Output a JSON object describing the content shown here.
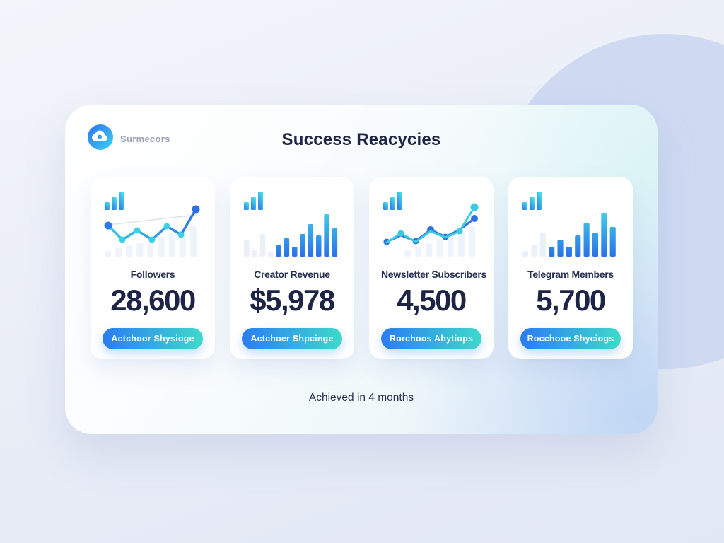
{
  "header": {
    "logo_text": "Surmecors",
    "title": "Success Reacycies"
  },
  "footer": {
    "text": "Achieved in 4 months"
  },
  "colors": {
    "accent_from": "#2b7cf2",
    "accent_to": "#3ed9cb",
    "navy": "#1d2445",
    "bg_circle": "#cfdaf2",
    "faint_bar": "#e9f0fa"
  },
  "cards": [
    {
      "label": "Followers",
      "value": "28,600",
      "button": "Actchoor Shysioge",
      "chart": {
        "type": "line",
        "bg_bars": [
          8,
          12,
          16,
          20,
          24,
          28,
          33,
          38,
          43
        ],
        "trend": {
          "points": [
            [
              8,
              37
            ],
            [
              132,
              23
            ]
          ],
          "color": "#dbe3ee"
        },
        "series": [
          {
            "from": "#3ecde2",
            "to": "#2b6fe6",
            "width": 3.4,
            "points": [
              [
                8,
                38
              ],
              [
                28,
                58
              ],
              [
                49,
                45
              ],
              [
                70,
                58
              ],
              [
                91,
                39
              ],
              [
                111,
                51
              ],
              [
                132,
                15
              ]
            ],
            "dots": [
              {
                "i": 0,
                "c": "#2e7ae8",
                "r": 5.5
              },
              {
                "i": 1,
                "c": "#3bd0e4",
                "r": 4.5
              },
              {
                "i": 2,
                "c": "#3bd0e4",
                "r": 4.5
              },
              {
                "i": 3,
                "c": "#3bd0e4",
                "r": 4.5
              },
              {
                "i": 4,
                "c": "#3bd0e4",
                "r": 4.5
              },
              {
                "i": 5,
                "c": "#3bd0e4",
                "r": 4.5
              },
              {
                "i": 6,
                "c": "#2b6fe6",
                "r": 5.5
              }
            ]
          }
        ]
      }
    },
    {
      "label": "Creator Revenue",
      "value": "$5,978",
      "button": "Actchoer Shpcinge",
      "chart": {
        "type": "bar",
        "faint": [
          24,
          10,
          32,
          6
        ],
        "bars": [
          16,
          26,
          14,
          32,
          46,
          30,
          60,
          40
        ]
      }
    },
    {
      "label": "Newsletter Subscribers",
      "value": "4,500",
      "button": "Rorchoos Ahytiops",
      "chart": {
        "type": "line",
        "bg_bars": [
          0,
          0,
          9,
          14,
          19,
          25,
          31,
          37,
          43
        ],
        "series": [
          {
            "from": "#2e6fe2",
            "to": "#2e6fe2",
            "width": 3,
            "points": [
              [
                8,
                61
              ],
              [
                28,
                52
              ],
              [
                49,
                60
              ],
              [
                70,
                44
              ],
              [
                91,
                54
              ],
              [
                111,
                44
              ],
              [
                132,
                28
              ]
            ],
            "dots": [
              {
                "i": 0,
                "c": "#2e6fe2",
                "r": 4.5
              },
              {
                "i": 2,
                "c": "#2e6fe2",
                "r": 4.5
              },
              {
                "i": 3,
                "c": "#2e6fe2",
                "r": 5
              },
              {
                "i": 4,
                "c": "#2e6fe2",
                "r": 4.5
              },
              {
                "i": 6,
                "c": "#2e6fe2",
                "r": 5
              }
            ]
          },
          {
            "from": "#3bcbe0",
            "to": "#3bcbe0",
            "width": 3,
            "points": [
              [
                8,
                62
              ],
              [
                28,
                49
              ],
              [
                49,
                61
              ],
              [
                70,
                46
              ],
              [
                91,
                55
              ],
              [
                111,
                46
              ],
              [
                132,
                12
              ]
            ],
            "dots": [
              {
                "i": 1,
                "c": "#3bcbe0",
                "r": 4.5
              },
              {
                "i": 5,
                "c": "#3bcbe0",
                "r": 4.5
              },
              {
                "i": 6,
                "c": "#3bcbe0",
                "r": 5.5
              }
            ]
          }
        ]
      }
    },
    {
      "label": "Telegram Members",
      "value": "5,700",
      "button": "Rocchooe Shyciogs",
      "chart": {
        "type": "bar",
        "faint": [
          8,
          16,
          34
        ],
        "bars": [
          14,
          24,
          14,
          30,
          48,
          34,
          62,
          42
        ]
      }
    }
  ]
}
